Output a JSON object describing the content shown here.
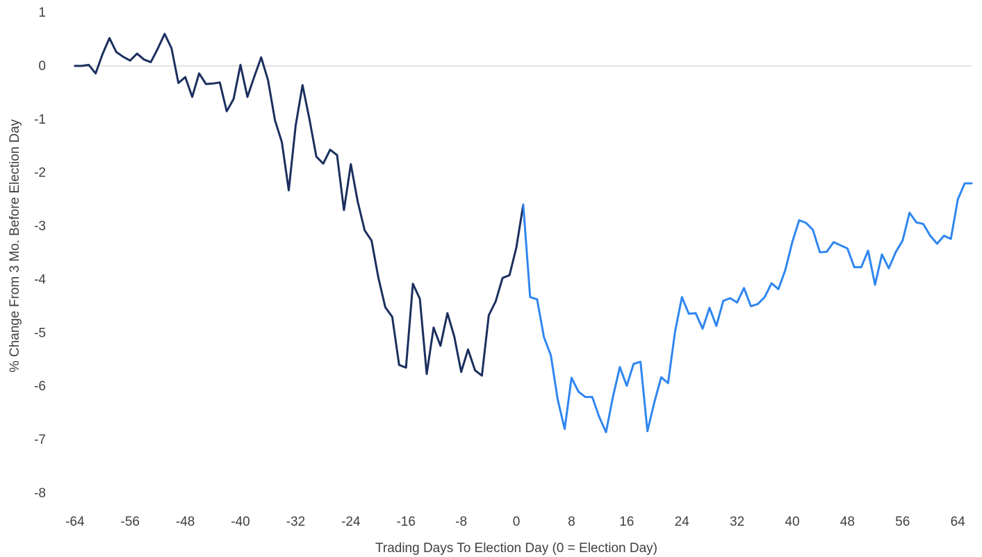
{
  "chart_data": {
    "type": "line",
    "xlabel": "Trading Days To Election Day (0 = Election Day)",
    "ylabel": "% Change From 3 Mo. Before Election Day",
    "xlim": [
      -66,
      66
    ],
    "ylim": [
      -8,
      1
    ],
    "x_ticks": [
      -64,
      -56,
      -48,
      -40,
      -32,
      -24,
      -16,
      -8,
      0,
      8,
      16,
      24,
      32,
      40,
      48,
      56,
      64
    ],
    "y_ticks": [
      1,
      0,
      -1,
      -2,
      -3,
      -4,
      -5,
      -6,
      -7,
      -8
    ],
    "grid": "zero line only",
    "legend": "none",
    "series": [
      {
        "color": "#1b2f5e",
        "x": [
          -64,
          -63,
          -62,
          -61,
          -60,
          -59,
          -58,
          -57,
          -56,
          -55,
          -54,
          -53,
          -52,
          -51,
          -50,
          -49,
          -48,
          -47,
          -46,
          -45,
          -44,
          -43,
          -42,
          -41,
          -40,
          -39,
          -38,
          -37,
          -36,
          -35,
          -34,
          -33,
          -32,
          -31,
          -30,
          -29,
          -28,
          -27,
          -26,
          -25,
          -24,
          -23,
          -22,
          -21,
          -20,
          -19,
          -18,
          -17,
          -16,
          -15,
          -14,
          -13,
          -12,
          -11,
          -10,
          -9,
          -8,
          -7,
          -6,
          -5,
          -4,
          -3,
          -2,
          -1,
          0,
          1
        ],
        "values": [
          0.0,
          0.0,
          0.02,
          -0.14,
          0.22,
          0.52,
          0.26,
          0.17,
          0.1,
          0.23,
          0.12,
          0.07,
          0.32,
          0.6,
          0.33,
          -0.32,
          -0.21,
          -0.58,
          -0.14,
          -0.34,
          -0.33,
          -0.31,
          -0.85,
          -0.62,
          0.02,
          -0.58,
          -0.2,
          0.16,
          -0.27,
          -1.02,
          -1.43,
          -2.33,
          -1.12,
          -0.36,
          -1.0,
          -1.7,
          -1.83,
          -1.57,
          -1.67,
          -2.7,
          -1.84,
          -2.54,
          -3.08,
          -3.27,
          -3.97,
          -4.52,
          -4.7,
          -5.6,
          -5.65,
          -4.08,
          -4.36,
          -5.77,
          -4.9,
          -5.24,
          -4.63,
          -5.07,
          -5.73,
          -5.31,
          -5.7,
          -5.8,
          -4.67,
          -4.41,
          -3.97,
          -3.92,
          -3.4,
          -2.6
        ]
      },
      {
        "color": "#2f86f0",
        "x": [
          1,
          2,
          3,
          4,
          5,
          6,
          7,
          8,
          9,
          10,
          11,
          12,
          13,
          14,
          15,
          16,
          17,
          18,
          19,
          20,
          21,
          22,
          23,
          24,
          25,
          26,
          27,
          28,
          29,
          30,
          31,
          32,
          33,
          34,
          35,
          36,
          37,
          38,
          39,
          40,
          41,
          42,
          43,
          44,
          45,
          46,
          47,
          48,
          49,
          50,
          51,
          52,
          53,
          54,
          55,
          56,
          57,
          58,
          59,
          60,
          61,
          62,
          63,
          64,
          65,
          66
        ],
        "values": [
          -2.6,
          -4.33,
          -4.37,
          -5.08,
          -5.42,
          -6.25,
          -6.8,
          -5.84,
          -6.1,
          -6.2,
          -6.2,
          -6.57,
          -6.86,
          -6.2,
          -5.64,
          -5.99,
          -5.58,
          -5.54,
          -6.84,
          -6.3,
          -5.83,
          -5.94,
          -4.98,
          -4.33,
          -4.64,
          -4.63,
          -4.92,
          -4.53,
          -4.87,
          -4.4,
          -4.35,
          -4.43,
          -4.16,
          -4.5,
          -4.46,
          -4.33,
          -4.07,
          -4.18,
          -3.82,
          -3.3,
          -2.89,
          -2.94,
          -3.07,
          -3.49,
          -3.48,
          -3.3,
          -3.36,
          -3.42,
          -3.77,
          -3.77,
          -3.46,
          -4.1,
          -3.53,
          -3.79,
          -3.49,
          -3.27,
          -2.75,
          -2.93,
          -2.96,
          -3.18,
          -3.33,
          -3.18,
          -3.24,
          -2.5,
          -2.2,
          -2.2
        ]
      }
    ]
  }
}
